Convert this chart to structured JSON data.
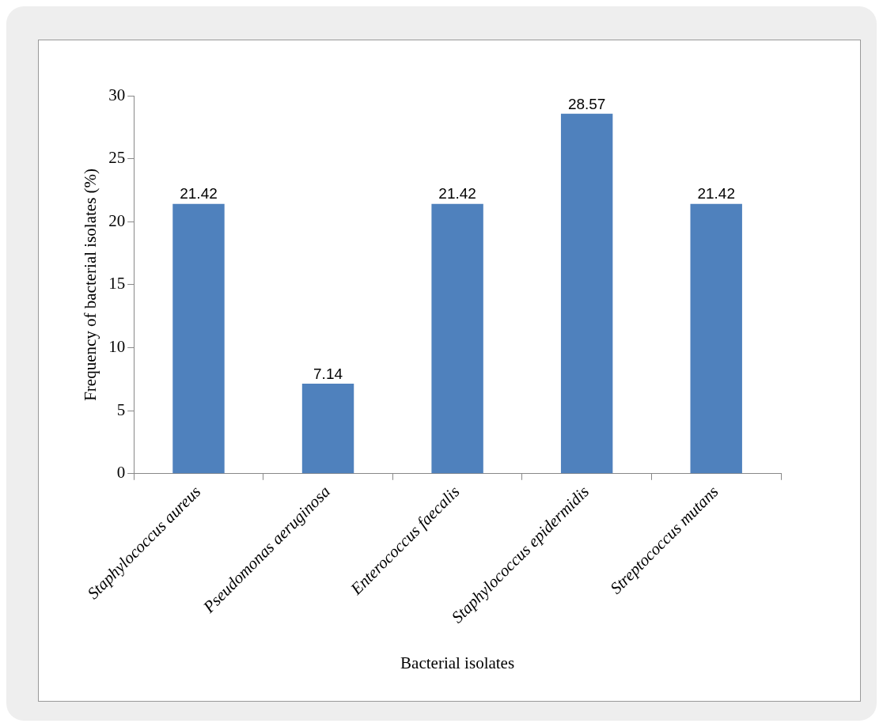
{
  "chart_data": {
    "type": "bar",
    "xlabel": "Bacterial isolates",
    "ylabel": "Frequency of bacterial isolates (%)",
    "categories": [
      "Staphylococcus aureus",
      "Pseudomonas aeruginosa",
      "Enterococcus faecalis",
      "Staphylococcus epidermidis",
      "Streptococcus mutans"
    ],
    "values": [
      21.42,
      7.14,
      21.42,
      28.57,
      21.42
    ],
    "color": "#4f81bd",
    "ylim": [
      0,
      30
    ],
    "yticks": [
      0,
      5,
      10,
      15,
      20,
      25,
      30
    ],
    "grid": false,
    "legend": false,
    "data_labels": true
  }
}
